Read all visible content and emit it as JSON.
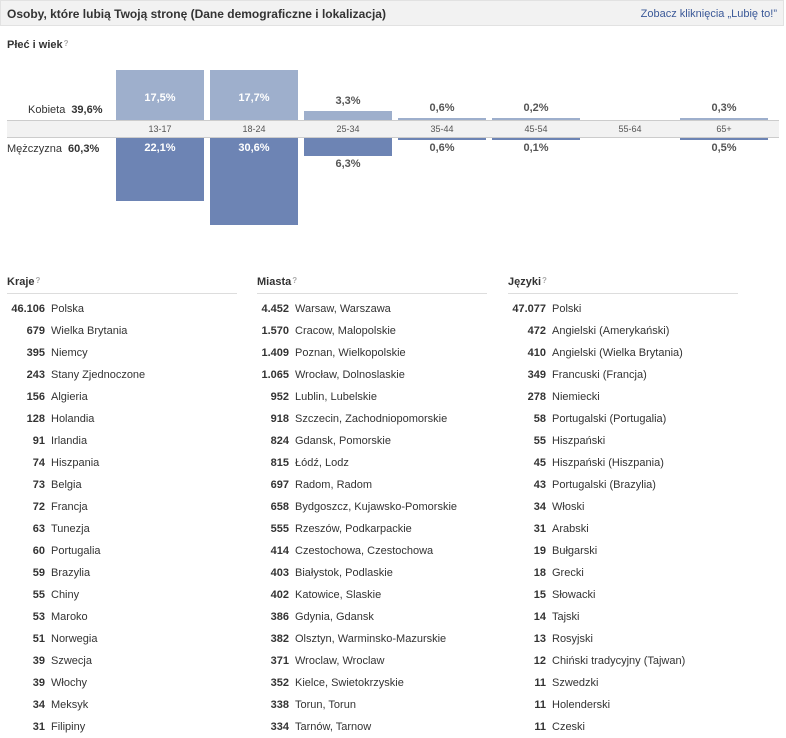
{
  "header": {
    "title": "Osoby, które lubią Twoją stronę (Dane demograficzne i lokalizacja)",
    "link": "Zobacz kliknięcia „Lubię to!”"
  },
  "gender_age": {
    "label": "Płeć i wiek",
    "help": "?",
    "female_label": "Kobieta",
    "female_total": "39,6%",
    "male_label": "Mężczyzna",
    "male_total": "60,3%",
    "groups": [
      {
        "age": "13-17",
        "female": "17,5%",
        "male": "22,1%"
      },
      {
        "age": "18-24",
        "female": "17,7%",
        "male": "30,6%"
      },
      {
        "age": "25-34",
        "female": "3,3%",
        "male": "6,3%"
      },
      {
        "age": "35-44",
        "female": "0,6%",
        "male": "0,6%"
      },
      {
        "age": "45-54",
        "female": "0,2%",
        "male": "0,1%"
      },
      {
        "age": "55-64",
        "female": "",
        "male": ""
      },
      {
        "age": "65+",
        "female": "0,3%",
        "male": "0,5%"
      }
    ]
  },
  "countries": {
    "title": "Kraje",
    "help": "?",
    "rows": [
      {
        "n": "46.106",
        "name": "Polska"
      },
      {
        "n": "679",
        "name": "Wielka Brytania"
      },
      {
        "n": "395",
        "name": "Niemcy"
      },
      {
        "n": "243",
        "name": "Stany Zjednoczone"
      },
      {
        "n": "156",
        "name": "Algieria"
      },
      {
        "n": "128",
        "name": "Holandia"
      },
      {
        "n": "91",
        "name": "Irlandia"
      },
      {
        "n": "74",
        "name": "Hiszpania"
      },
      {
        "n": "73",
        "name": "Belgia"
      },
      {
        "n": "72",
        "name": "Francja"
      },
      {
        "n": "63",
        "name": "Tunezja"
      },
      {
        "n": "60",
        "name": "Portugalia"
      },
      {
        "n": "59",
        "name": "Brazylia"
      },
      {
        "n": "55",
        "name": "Chiny"
      },
      {
        "n": "53",
        "name": "Maroko"
      },
      {
        "n": "51",
        "name": "Norwegia"
      },
      {
        "n": "39",
        "name": "Szwecja"
      },
      {
        "n": "39",
        "name": "Włochy"
      },
      {
        "n": "34",
        "name": "Meksyk"
      },
      {
        "n": "31",
        "name": "Filipiny"
      }
    ]
  },
  "cities": {
    "title": "Miasta",
    "help": "?",
    "rows": [
      {
        "n": "4.452",
        "name": "Warsaw, Warszawa"
      },
      {
        "n": "1.570",
        "name": "Cracow, Malopolskie"
      },
      {
        "n": "1.409",
        "name": "Poznan, Wielkopolskie"
      },
      {
        "n": "1.065",
        "name": "Wrocław, Dolnoslaskie"
      },
      {
        "n": "952",
        "name": "Lublin, Lubelskie"
      },
      {
        "n": "918",
        "name": "Szczecin, Zachodniopomorskie"
      },
      {
        "n": "824",
        "name": "Gdansk, Pomorskie"
      },
      {
        "n": "815",
        "name": "Łódź, Lodz"
      },
      {
        "n": "697",
        "name": "Radom, Radom"
      },
      {
        "n": "658",
        "name": "Bydgoszcz, Kujawsko-Pomorskie"
      },
      {
        "n": "555",
        "name": "Rzeszów, Podkarpackie"
      },
      {
        "n": "414",
        "name": "Czestochowa, Czestochowa"
      },
      {
        "n": "403",
        "name": "Białystok, Podlaskie"
      },
      {
        "n": "402",
        "name": "Katowice, Slaskie"
      },
      {
        "n": "386",
        "name": "Gdynia, Gdansk"
      },
      {
        "n": "382",
        "name": "Olsztyn, Warminsko-Mazurskie"
      },
      {
        "n": "371",
        "name": "Wroclaw, Wroclaw"
      },
      {
        "n": "352",
        "name": "Kielce, Swietokrzyskie"
      },
      {
        "n": "338",
        "name": "Torun, Torun"
      },
      {
        "n": "334",
        "name": "Tarnów, Tarnow"
      }
    ]
  },
  "languages": {
    "title": "Języki",
    "help": "?",
    "rows": [
      {
        "n": "47.077",
        "name": "Polski"
      },
      {
        "n": "472",
        "name": "Angielski (Amerykański)"
      },
      {
        "n": "410",
        "name": "Angielski (Wielka Brytania)"
      },
      {
        "n": "349",
        "name": "Francuski (Francja)"
      },
      {
        "n": "278",
        "name": "Niemiecki"
      },
      {
        "n": "58",
        "name": "Portugalski (Portugalia)"
      },
      {
        "n": "55",
        "name": "Hiszpański"
      },
      {
        "n": "45",
        "name": "Hiszpański (Hiszpania)"
      },
      {
        "n": "43",
        "name": "Portugalski (Brazylia)"
      },
      {
        "n": "34",
        "name": "Włoski"
      },
      {
        "n": "31",
        "name": "Arabski"
      },
      {
        "n": "19",
        "name": "Bułgarski"
      },
      {
        "n": "18",
        "name": "Grecki"
      },
      {
        "n": "15",
        "name": "Słowacki"
      },
      {
        "n": "14",
        "name": "Tajski"
      },
      {
        "n": "13",
        "name": "Rosyjski"
      },
      {
        "n": "12",
        "name": "Chiński tradycyjny (Tajwan)"
      },
      {
        "n": "11",
        "name": "Szwedzki"
      },
      {
        "n": "11",
        "name": "Holenderski"
      },
      {
        "n": "11",
        "name": "Czeski"
      }
    ]
  },
  "colors": {
    "female_bar": "#9eafcc",
    "male_bar": "#6d84b4",
    "link": "#3b5998"
  }
}
